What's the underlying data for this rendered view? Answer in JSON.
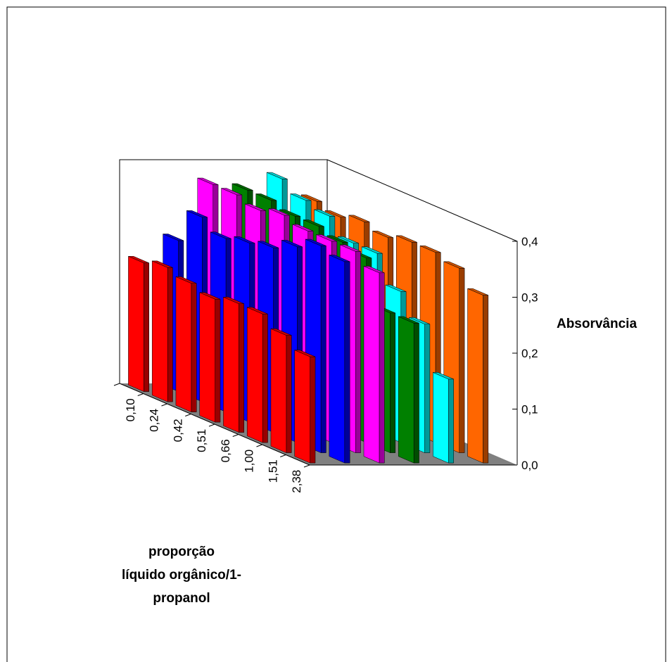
{
  "chart_data": {
    "type": "bar3d",
    "y_label": "Absorvância",
    "x_label": [
      "proporção",
      "líquido orgânico/1-",
      "propanol"
    ],
    "categories": [
      "0,10",
      "0,24",
      "0,42",
      "0,51",
      "0,66",
      "1,00",
      "1,51",
      "2,38"
    ],
    "series": [
      {
        "color": "#ff0000",
        "values": [
          0.23,
          0.24,
          0.23,
          0.22,
          0.23,
          0.23,
          0.21,
          0.19
        ]
      },
      {
        "color": "#0000ff",
        "values": [
          0.27,
          0.33,
          0.31,
          0.32,
          0.33,
          0.35,
          0.37,
          0.36
        ]
      },
      {
        "color": "#ff00ff",
        "values": [
          0.37,
          0.37,
          0.36,
          0.37,
          0.36,
          0.36,
          0.36,
          0.34
        ]
      },
      {
        "color": "#008000",
        "values": [
          0.36,
          0.36,
          0.35,
          0.35,
          0.34,
          0.33,
          0.25,
          0.25
        ]
      },
      {
        "color": "#00ffff",
        "values": [
          0.38,
          0.36,
          0.35,
          0.32,
          0.32,
          0.27,
          0.23,
          0.15
        ]
      },
      {
        "color": "#ff6600",
        "values": [
          0.34,
          0.33,
          0.34,
          0.33,
          0.34,
          0.34,
          0.33,
          0.3
        ]
      }
    ],
    "ylim": [
      0,
      0.4
    ],
    "yticks": [
      {
        "value": 0,
        "label": "0,0"
      },
      {
        "value": 0.1,
        "label": "0,1"
      },
      {
        "value": 0.2,
        "label": "0,2"
      },
      {
        "value": 0.3,
        "label": "0,3"
      },
      {
        "value": 0.4,
        "label": "0,4"
      }
    ],
    "floor_color": "#808080"
  }
}
